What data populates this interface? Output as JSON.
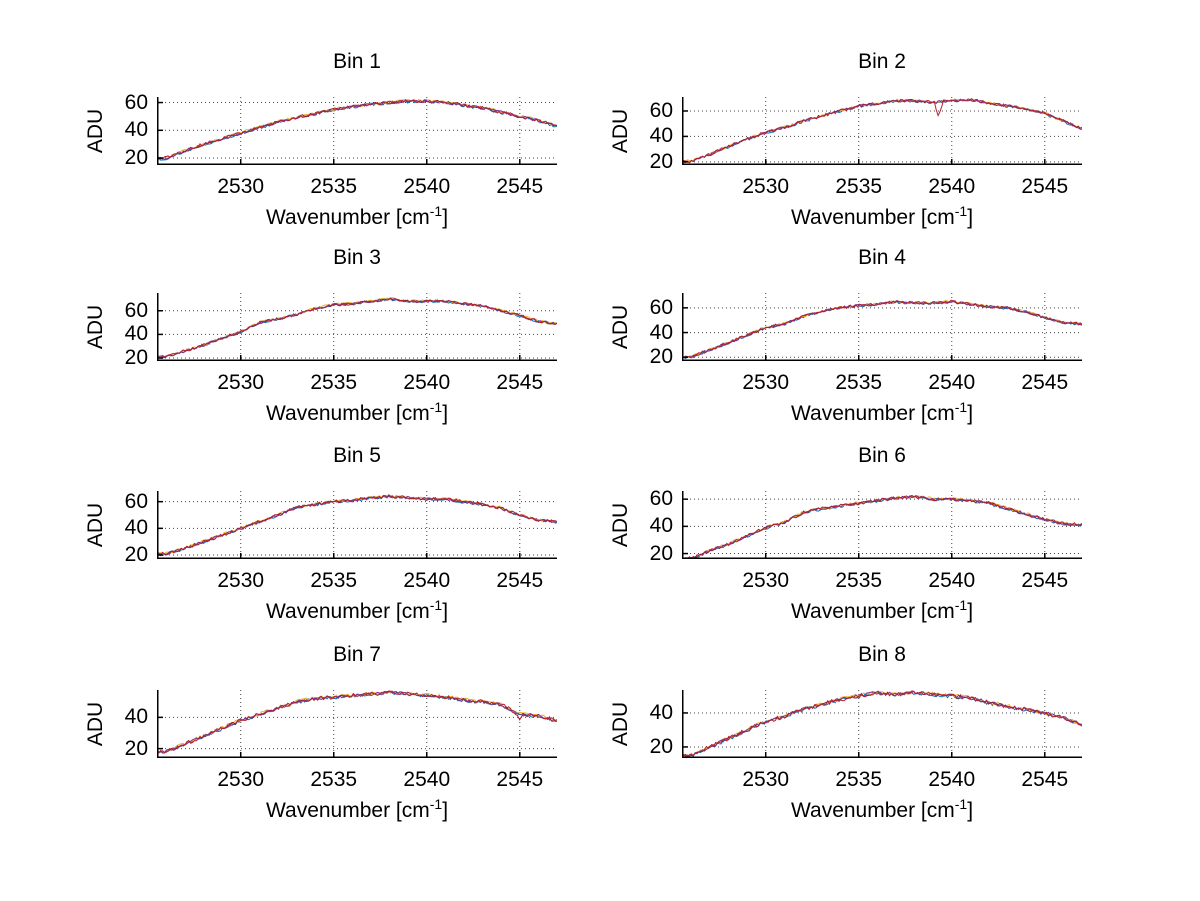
{
  "figure": {
    "background": "#ffffff",
    "rows": 4,
    "cols": 2
  },
  "labels": {
    "ylabel": "ADU",
    "xlabel_prefix": "Wavenumber [cm",
    "xlabel_sup": "-1",
    "xlabel_suffix": "]"
  },
  "style": {
    "series_colors": [
      "#0072bd",
      "#edb120",
      "#7e2f8e",
      "#b01e2e"
    ],
    "grid_color": "#444444",
    "axis_color": "#000000",
    "font_color": "#000000"
  },
  "chart_data": [
    {
      "type": "line",
      "title": "Bin 1",
      "xlabel": "Wavenumber [cm⁻¹]",
      "ylabel": "ADU",
      "legend": "none",
      "grid": "dotted",
      "xlim": [
        2525.5,
        2547.0
      ],
      "ylim": [
        15,
        64
      ],
      "xticks": [
        2530,
        2535,
        2540,
        2545
      ],
      "yticks": [
        20,
        40,
        60
      ],
      "x": [
        2525.5,
        2526,
        2527,
        2528,
        2529,
        2530,
        2531,
        2532,
        2533,
        2534,
        2535,
        2536,
        2537,
        2538,
        2539,
        2540,
        2541,
        2542,
        2543,
        2544,
        2545,
        2546,
        2547
      ],
      "y": [
        19.5,
        20,
        25,
        30,
        34,
        38,
        42,
        46,
        49,
        52,
        55,
        57,
        59,
        60,
        61,
        61,
        60,
        58,
        56,
        53,
        50,
        47,
        43
      ],
      "noise": 1.0,
      "spikes": []
    },
    {
      "type": "line",
      "title": "Bin 2",
      "xlabel": "Wavenumber [cm⁻¹]",
      "ylabel": "ADU",
      "legend": "none",
      "grid": "dotted",
      "xlim": [
        2525.5,
        2547.0
      ],
      "ylim": [
        17.5,
        71
      ],
      "xticks": [
        2530,
        2535,
        2540,
        2545
      ],
      "yticks": [
        20,
        40,
        60
      ],
      "x": [
        2525.5,
        2526,
        2527,
        2528,
        2529,
        2530,
        2531,
        2532,
        2533,
        2534,
        2535,
        2536,
        2537,
        2538,
        2539,
        2540,
        2541,
        2542,
        2543,
        2544,
        2545,
        2546,
        2547
      ],
      "y": [
        20,
        20.5,
        26,
        32,
        38,
        43,
        47,
        52,
        56,
        60,
        64,
        66,
        68,
        68,
        67,
        68,
        69,
        66,
        64,
        62,
        58,
        52,
        46
      ],
      "noise": 1.0,
      "spikes": [
        {
          "x": 2539.3,
          "dy": -12,
          "width": 0.25,
          "series": 3
        }
      ]
    },
    {
      "type": "line",
      "title": "Bin 3",
      "xlabel": "Wavenumber [cm⁻¹]",
      "ylabel": "ADU",
      "legend": "none",
      "grid": "dotted",
      "xlim": [
        2525.5,
        2547.0
      ],
      "ylim": [
        17.5,
        75
      ],
      "xticks": [
        2530,
        2535,
        2540,
        2545
      ],
      "yticks": [
        20,
        40,
        60
      ],
      "x": [
        2525.5,
        2526,
        2527,
        2528,
        2529,
        2530,
        2531,
        2532,
        2533,
        2534,
        2535,
        2536,
        2537,
        2538,
        2539,
        2540,
        2541,
        2542,
        2543,
        2544,
        2545,
        2546,
        2547
      ],
      "y": [
        21,
        21.5,
        26,
        31,
        37,
        42,
        50,
        53,
        57,
        62,
        65,
        66,
        68,
        70,
        68,
        68,
        68,
        66,
        64,
        60,
        56,
        51,
        49
      ],
      "noise": 1.0,
      "spikes": []
    },
    {
      "type": "line",
      "title": "Bin 4",
      "xlabel": "Wavenumber [cm⁻¹]",
      "ylabel": "ADU",
      "legend": "none",
      "grid": "dotted",
      "xlim": [
        2525.5,
        2547.0
      ],
      "ylim": [
        17,
        72
      ],
      "xticks": [
        2530,
        2535,
        2540,
        2545
      ],
      "yticks": [
        20,
        40,
        60
      ],
      "x": [
        2525.5,
        2526,
        2527,
        2528,
        2529,
        2530,
        2531,
        2532,
        2533,
        2534,
        2535,
        2536,
        2537,
        2538,
        2539,
        2540,
        2541,
        2542,
        2543,
        2544,
        2545,
        2546,
        2547
      ],
      "y": [
        20,
        20.5,
        26,
        32,
        38,
        44,
        47,
        53,
        57,
        60,
        62,
        63,
        65,
        64,
        64,
        65,
        63,
        61,
        60,
        57,
        52,
        48,
        47
      ],
      "noise": 1.0,
      "spikes": []
    },
    {
      "type": "line",
      "title": "Bin 5",
      "xlabel": "Wavenumber [cm⁻¹]",
      "ylabel": "ADU",
      "legend": "none",
      "grid": "dotted",
      "xlim": [
        2525.5,
        2547.0
      ],
      "ylim": [
        17,
        68
      ],
      "xticks": [
        2530,
        2535,
        2540,
        2545
      ],
      "yticks": [
        20,
        40,
        60
      ],
      "x": [
        2525.5,
        2526,
        2527,
        2528,
        2529,
        2530,
        2531,
        2532,
        2533,
        2534,
        2535,
        2536,
        2537,
        2538,
        2539,
        2540,
        2541,
        2542,
        2543,
        2544,
        2545,
        2546,
        2547
      ],
      "y": [
        20.5,
        21,
        25,
        30,
        35,
        40,
        45,
        50,
        56,
        58,
        60,
        61,
        63,
        64,
        63,
        62,
        62,
        60,
        58,
        55,
        50,
        46,
        45
      ],
      "noise": 1.0,
      "spikes": []
    },
    {
      "type": "line",
      "title": "Bin 6",
      "xlabel": "Wavenumber [cm⁻¹]",
      "ylabel": "ADU",
      "legend": "none",
      "grid": "dotted",
      "xlim": [
        2525.5,
        2547.0
      ],
      "ylim": [
        16,
        66
      ],
      "xticks": [
        2530,
        2535,
        2540,
        2545
      ],
      "yticks": [
        20,
        40,
        60
      ],
      "x": [
        2525.5,
        2526,
        2527,
        2528,
        2529,
        2530,
        2531,
        2532,
        2533,
        2534,
        2535,
        2536,
        2537,
        2538,
        2539,
        2540,
        2541,
        2542,
        2543,
        2544,
        2545,
        2546,
        2547
      ],
      "y": [
        16,
        16.5,
        22,
        27,
        33,
        39,
        43,
        50,
        53,
        55,
        57,
        59,
        61,
        62,
        60,
        60,
        59,
        57,
        53,
        49,
        45,
        42,
        41
      ],
      "noise": 1.0,
      "spikes": []
    },
    {
      "type": "line",
      "title": "Bin 7",
      "xlabel": "Wavenumber [cm⁻¹]",
      "ylabel": "ADU",
      "legend": "none",
      "grid": "dotted",
      "xlim": [
        2525.5,
        2547.0
      ],
      "ylim": [
        14,
        57.5
      ],
      "xticks": [
        2530,
        2535,
        2540,
        2545
      ],
      "yticks": [
        20,
        40
      ],
      "x": [
        2525.5,
        2526,
        2527,
        2528,
        2529,
        2530,
        2531,
        2532,
        2533,
        2534,
        2535,
        2536,
        2537,
        2538,
        2539,
        2540,
        2541,
        2542,
        2543,
        2544,
        2545,
        2546,
        2547
      ],
      "y": [
        17.5,
        18,
        23,
        28,
        33,
        38,
        42,
        46,
        50,
        52,
        53,
        54,
        55,
        56,
        55,
        54,
        53,
        51,
        50,
        48,
        42,
        41,
        38
      ],
      "noise": 1.0,
      "spikes": [
        {
          "x": 2545.0,
          "dy": -2.5,
          "width": 0.3,
          "series": 3
        }
      ]
    },
    {
      "type": "line",
      "title": "Bin 8",
      "xlabel": "Wavenumber [cm⁻¹]",
      "ylabel": "ADU",
      "legend": "none",
      "grid": "dotted",
      "xlim": [
        2525.5,
        2547.0
      ],
      "ylim": [
        13.5,
        53.5
      ],
      "xticks": [
        2530,
        2535,
        2540,
        2545
      ],
      "yticks": [
        20,
        40
      ],
      "x": [
        2525.5,
        2526,
        2527,
        2528,
        2529,
        2530,
        2531,
        2532,
        2533,
        2534,
        2535,
        2536,
        2537,
        2538,
        2539,
        2540,
        2541,
        2542,
        2543,
        2544,
        2545,
        2546,
        2547
      ],
      "y": [
        14.5,
        15,
        20,
        25,
        30,
        35,
        38,
        42,
        45,
        48,
        50,
        52,
        51,
        52,
        51,
        50,
        49,
        46,
        44,
        42,
        40,
        37,
        33
      ],
      "noise": 1.0,
      "spikes": []
    }
  ]
}
